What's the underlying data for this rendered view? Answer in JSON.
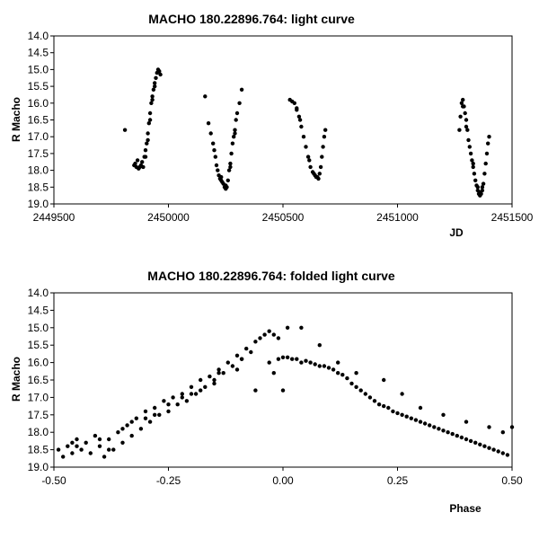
{
  "chart_data": [
    {
      "type": "scatter",
      "title": "MACHO 180.22896.764: light curve",
      "xlabel": "JD",
      "ylabel": "R Macho",
      "xlim": [
        2449500,
        2451500
      ],
      "ylim": [
        14.0,
        19.0
      ],
      "y_inverted": true,
      "grid": false,
      "legend": "none",
      "xticks": [
        "2449500",
        "2450000",
        "2450500",
        "2451000",
        "2451500"
      ],
      "yticks": [
        "14.0",
        "14.5",
        "15.0",
        "15.5",
        "16.0",
        "16.5",
        "17.0",
        "17.5",
        "18.0",
        "18.5",
        "19.0"
      ],
      "series": [
        {
          "points": [
            [
              2449810,
              16.8
            ],
            [
              2449850,
              17.85
            ],
            [
              2449855,
              17.8
            ],
            [
              2449860,
              17.9
            ],
            [
              2449865,
              17.7
            ],
            [
              2449870,
              17.95
            ],
            [
              2449875,
              17.9
            ],
            [
              2449880,
              17.85
            ],
            [
              2449885,
              17.75
            ],
            [
              2449890,
              17.9
            ],
            [
              2449895,
              17.6
            ],
            [
              2449900,
              17.4
            ],
            [
              2449905,
              17.2
            ],
            [
              2449910,
              16.9
            ],
            [
              2449915,
              16.6
            ],
            [
              2449920,
              16.3
            ],
            [
              2449925,
              16.0
            ],
            [
              2449930,
              15.8
            ],
            [
              2449935,
              15.6
            ],
            [
              2449940,
              15.4
            ],
            [
              2449945,
              15.25
            ],
            [
              2449950,
              15.1
            ],
            [
              2449955,
              15.0
            ],
            [
              2449960,
              15.05
            ],
            [
              2449965,
              15.15
            ],
            [
              2449900,
              17.6
            ],
            [
              2449910,
              17.1
            ],
            [
              2449920,
              16.5
            ],
            [
              2449930,
              15.9
            ],
            [
              2449940,
              15.5
            ],
            [
              2450160,
              15.8
            ],
            [
              2450175,
              16.6
            ],
            [
              2450185,
              16.9
            ],
            [
              2450195,
              17.2
            ],
            [
              2450205,
              17.6
            ],
            [
              2450210,
              17.85
            ],
            [
              2450215,
              18.0
            ],
            [
              2450220,
              18.15
            ],
            [
              2450225,
              18.25
            ],
            [
              2450230,
              18.3
            ],
            [
              2450235,
              18.35
            ],
            [
              2450240,
              18.4
            ],
            [
              2450245,
              18.5
            ],
            [
              2450250,
              18.45
            ],
            [
              2450255,
              18.5
            ],
            [
              2450260,
              18.3
            ],
            [
              2450265,
              18.0
            ],
            [
              2450270,
              17.8
            ],
            [
              2450275,
              17.5
            ],
            [
              2450280,
              17.2
            ],
            [
              2450285,
              17.0
            ],
            [
              2450290,
              16.8
            ],
            [
              2450295,
              16.5
            ],
            [
              2450300,
              16.3
            ],
            [
              2450310,
              16.0
            ],
            [
              2450320,
              15.6
            ],
            [
              2450200,
              17.4
            ],
            [
              2450230,
              18.2
            ],
            [
              2450250,
              18.55
            ],
            [
              2450270,
              17.9
            ],
            [
              2450290,
              16.9
            ],
            [
              2450530,
              15.9
            ],
            [
              2450540,
              15.95
            ],
            [
              2450550,
              16.0
            ],
            [
              2450560,
              16.2
            ],
            [
              2450570,
              16.4
            ],
            [
              2450580,
              16.7
            ],
            [
              2450590,
              17.0
            ],
            [
              2450600,
              17.3
            ],
            [
              2450610,
              17.6
            ],
            [
              2450620,
              17.9
            ],
            [
              2450630,
              18.05
            ],
            [
              2450640,
              18.15
            ],
            [
              2450650,
              18.2
            ],
            [
              2450655,
              18.25
            ],
            [
              2450660,
              18.1
            ],
            [
              2450665,
              17.9
            ],
            [
              2450670,
              17.6
            ],
            [
              2450675,
              17.3
            ],
            [
              2450680,
              17.0
            ],
            [
              2450685,
              16.8
            ],
            [
              2450615,
              17.7
            ],
            [
              2450635,
              18.1
            ],
            [
              2450645,
              18.2
            ],
            [
              2450560,
              16.15
            ],
            [
              2450575,
              16.5
            ],
            [
              2451270,
              16.8
            ],
            [
              2451275,
              16.4
            ],
            [
              2451280,
              16.0
            ],
            [
              2451285,
              15.9
            ],
            [
              2451290,
              16.1
            ],
            [
              2451295,
              16.3
            ],
            [
              2451300,
              16.5
            ],
            [
              2451305,
              16.8
            ],
            [
              2451310,
              17.1
            ],
            [
              2451315,
              17.3
            ],
            [
              2451320,
              17.5
            ],
            [
              2451325,
              17.7
            ],
            [
              2451330,
              17.9
            ],
            [
              2451335,
              18.1
            ],
            [
              2451340,
              18.3
            ],
            [
              2451345,
              18.45
            ],
            [
              2451350,
              18.6
            ],
            [
              2451355,
              18.7
            ],
            [
              2451360,
              18.75
            ],
            [
              2451365,
              18.7
            ],
            [
              2451370,
              18.6
            ],
            [
              2451375,
              18.4
            ],
            [
              2451380,
              18.1
            ],
            [
              2451385,
              17.8
            ],
            [
              2451390,
              17.5
            ],
            [
              2451395,
              17.2
            ],
            [
              2451400,
              17.0
            ],
            [
              2451285,
              16.1
            ],
            [
              2451300,
              16.7
            ],
            [
              2451330,
              17.8
            ],
            [
              2451350,
              18.5
            ],
            [
              2451360,
              18.65
            ],
            [
              2451370,
              18.5
            ]
          ]
        }
      ]
    },
    {
      "type": "scatter",
      "title": "MACHO 180.22896.764: folded light curve",
      "xlabel": "Phase",
      "ylabel": "R Macho",
      "xlim": [
        -0.5,
        0.5
      ],
      "ylim": [
        14.0,
        19.0
      ],
      "y_inverted": true,
      "grid": false,
      "legend": "none",
      "xticks": [
        "-0.50",
        "-0.25",
        "0.00",
        "0.25",
        "0.50"
      ],
      "yticks": [
        "14.0",
        "14.5",
        "15.0",
        "15.5",
        "16.0",
        "16.5",
        "17.0",
        "17.5",
        "18.0",
        "18.5",
        "19.0"
      ],
      "series": [
        {
          "points": [
            [
              -0.49,
              18.5
            ],
            [
              -0.48,
              18.7
            ],
            [
              -0.47,
              18.4
            ],
            [
              -0.46,
              18.6
            ],
            [
              -0.45,
              18.2
            ],
            [
              -0.44,
              18.5
            ],
            [
              -0.43,
              18.3
            ],
            [
              -0.42,
              18.6
            ],
            [
              -0.41,
              18.1
            ],
            [
              -0.4,
              18.4
            ],
            [
              -0.39,
              18.7
            ],
            [
              -0.38,
              18.2
            ],
            [
              -0.37,
              18.5
            ],
            [
              -0.36,
              18.0
            ],
            [
              -0.35,
              18.3
            ],
            [
              -0.34,
              17.8
            ],
            [
              -0.33,
              18.1
            ],
            [
              -0.32,
              17.6
            ],
            [
              -0.31,
              17.9
            ],
            [
              -0.3,
              17.4
            ],
            [
              -0.29,
              17.7
            ],
            [
              -0.28,
              17.3
            ],
            [
              -0.27,
              17.5
            ],
            [
              -0.26,
              17.1
            ],
            [
              -0.25,
              17.4
            ],
            [
              -0.24,
              17.0
            ],
            [
              -0.23,
              17.2
            ],
            [
              -0.22,
              16.9
            ],
            [
              -0.21,
              17.1
            ],
            [
              -0.2,
              16.7
            ],
            [
              -0.19,
              16.9
            ],
            [
              -0.18,
              16.5
            ],
            [
              -0.17,
              16.7
            ],
            [
              -0.16,
              16.4
            ],
            [
              -0.15,
              16.5
            ],
            [
              -0.14,
              16.2
            ],
            [
              -0.13,
              16.3
            ],
            [
              -0.12,
              16.0
            ],
            [
              -0.11,
              16.1
            ],
            [
              -0.1,
              15.8
            ],
            [
              -0.09,
              15.9
            ],
            [
              -0.08,
              15.6
            ],
            [
              -0.07,
              15.7
            ],
            [
              -0.06,
              15.4
            ],
            [
              -0.05,
              15.3
            ],
            [
              -0.04,
              15.2
            ],
            [
              -0.03,
              15.1
            ],
            [
              -0.02,
              15.2
            ],
            [
              -0.01,
              15.3
            ],
            [
              0.01,
              15.0
            ],
            [
              0.04,
              15.0
            ],
            [
              0.08,
              15.5
            ],
            [
              -0.06,
              16.8
            ],
            [
              -0.02,
              16.3
            ],
            [
              0.0,
              16.8
            ],
            [
              -0.03,
              16.0
            ],
            [
              -0.01,
              15.9
            ],
            [
              0.0,
              15.85
            ],
            [
              0.01,
              15.85
            ],
            [
              0.02,
              15.9
            ],
            [
              0.03,
              15.9
            ],
            [
              0.04,
              16.0
            ],
            [
              0.05,
              15.95
            ],
            [
              0.06,
              16.0
            ],
            [
              0.07,
              16.05
            ],
            [
              0.08,
              16.1
            ],
            [
              0.09,
              16.1
            ],
            [
              0.1,
              16.15
            ],
            [
              0.11,
              16.2
            ],
            [
              0.12,
              16.3
            ],
            [
              0.13,
              16.35
            ],
            [
              0.14,
              16.45
            ],
            [
              0.15,
              16.6
            ],
            [
              0.16,
              16.7
            ],
            [
              0.17,
              16.8
            ],
            [
              0.18,
              16.9
            ],
            [
              0.19,
              17.0
            ],
            [
              0.2,
              17.1
            ],
            [
              0.21,
              17.2
            ],
            [
              0.22,
              17.25
            ],
            [
              0.23,
              17.3
            ],
            [
              0.24,
              17.4
            ],
            [
              0.25,
              17.45
            ],
            [
              0.26,
              17.5
            ],
            [
              0.27,
              17.55
            ],
            [
              0.28,
              17.6
            ],
            [
              0.29,
              17.65
            ],
            [
              0.3,
              17.7
            ],
            [
              0.31,
              17.75
            ],
            [
              0.32,
              17.8
            ],
            [
              0.33,
              17.85
            ],
            [
              0.34,
              17.9
            ],
            [
              0.35,
              17.95
            ],
            [
              0.36,
              18.0
            ],
            [
              0.37,
              18.05
            ],
            [
              0.38,
              18.1
            ],
            [
              0.39,
              18.15
            ],
            [
              0.4,
              18.2
            ],
            [
              0.41,
              18.25
            ],
            [
              0.42,
              18.3
            ],
            [
              0.43,
              18.35
            ],
            [
              0.44,
              18.4
            ],
            [
              0.45,
              18.45
            ],
            [
              0.46,
              18.5
            ],
            [
              0.47,
              18.55
            ],
            [
              0.48,
              18.6
            ],
            [
              0.49,
              18.65
            ],
            [
              0.12,
              16.0
            ],
            [
              0.16,
              16.3
            ],
            [
              0.22,
              16.5
            ],
            [
              0.26,
              16.9
            ],
            [
              0.3,
              17.3
            ],
            [
              0.35,
              17.5
            ],
            [
              0.4,
              17.7
            ],
            [
              0.45,
              17.85
            ],
            [
              0.48,
              18.0
            ],
            [
              0.5,
              17.85
            ],
            [
              -0.45,
              18.4
            ],
            [
              -0.4,
              18.2
            ],
            [
              -0.35,
              17.9
            ],
            [
              -0.3,
              17.6
            ],
            [
              -0.25,
              17.2
            ],
            [
              -0.2,
              16.9
            ],
            [
              -0.15,
              16.6
            ],
            [
              -0.1,
              16.2
            ],
            [
              -0.46,
              18.3
            ],
            [
              -0.38,
              18.5
            ],
            [
              -0.33,
              17.7
            ],
            [
              -0.28,
              17.5
            ],
            [
              -0.22,
              17.0
            ],
            [
              -0.18,
              16.8
            ],
            [
              -0.14,
              16.3
            ],
            [
              -0.09,
              15.9
            ]
          ]
        }
      ]
    }
  ]
}
